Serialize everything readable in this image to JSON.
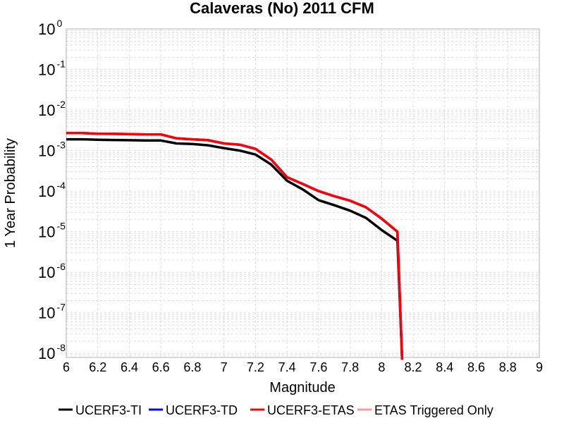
{
  "chart_data": {
    "type": "line",
    "title": "Calaveras (No) 2011 CFM",
    "xlabel": "Magnitude",
    "ylabel": "1 Year Probability",
    "xlim": [
      6,
      9
    ],
    "ylim_log10": [
      -8.1,
      0
    ],
    "yscale": "log",
    "grid": true,
    "legend_position": "bottom",
    "x_ticks": [
      "6",
      "6.2",
      "6.4",
      "6.6",
      "6.8",
      "7",
      "7.2",
      "7.4",
      "7.6",
      "7.8",
      "8",
      "8.2",
      "8.4",
      "8.6",
      "8.8",
      "9"
    ],
    "y_ticks": [
      {
        "base": "10",
        "exp": "0"
      },
      {
        "base": "10",
        "exp": "-1"
      },
      {
        "base": "10",
        "exp": "-2"
      },
      {
        "base": "10",
        "exp": "-3"
      },
      {
        "base": "10",
        "exp": "-4"
      },
      {
        "base": "10",
        "exp": "-5"
      },
      {
        "base": "10",
        "exp": "-6"
      },
      {
        "base": "10",
        "exp": "-7"
      },
      {
        "base": "10",
        "exp": "-8"
      }
    ],
    "series": [
      {
        "name": "UCERF3-TI",
        "color": "#000000",
        "x": [
          6.0,
          6.1,
          6.2,
          6.3,
          6.4,
          6.5,
          6.6,
          6.7,
          6.8,
          6.9,
          7.0,
          7.1,
          7.2,
          7.3,
          7.4,
          7.5,
          7.6,
          7.7,
          7.8,
          7.9,
          8.0,
          8.1,
          8.13
        ],
        "y": [
          0.0019,
          0.0019,
          0.00185,
          0.00182,
          0.0018,
          0.00178,
          0.00177,
          0.0015,
          0.00145,
          0.00135,
          0.00115,
          0.001,
          0.0008,
          0.00045,
          0.00018,
          0.00011,
          6e-05,
          4.5e-05,
          3.3e-05,
          2.2e-05,
          1.1e-05,
          6e-06,
          7e-09
        ]
      },
      {
        "name": "UCERF3-TD",
        "color": "#0000ff",
        "x": [
          6.0,
          6.1,
          6.2,
          6.3,
          6.4,
          6.5,
          6.6,
          6.7,
          6.8,
          6.9,
          7.0,
          7.1,
          7.2,
          7.3,
          7.4,
          7.5,
          7.6,
          7.7,
          7.8,
          7.9,
          8.0,
          8.1,
          8.13
        ],
        "y": [
          0.0027,
          0.0027,
          0.0026,
          0.00258,
          0.00255,
          0.0025,
          0.0025,
          0.002,
          0.0019,
          0.0018,
          0.0015,
          0.0014,
          0.0011,
          0.0006,
          0.00022,
          0.00015,
          0.0001,
          7.5e-05,
          5.8e-05,
          4e-05,
          2.1e-05,
          1e-05,
          7e-09
        ]
      },
      {
        "name": "UCERF3-ETAS",
        "color": "#ff0000",
        "x": [
          6.0,
          6.1,
          6.2,
          6.3,
          6.4,
          6.5,
          6.6,
          6.7,
          6.8,
          6.9,
          7.0,
          7.1,
          7.2,
          7.3,
          7.4,
          7.5,
          7.6,
          7.7,
          7.8,
          7.9,
          8.0,
          8.1,
          8.13
        ],
        "y": [
          0.0027,
          0.0027,
          0.0026,
          0.00258,
          0.00255,
          0.0025,
          0.0025,
          0.002,
          0.0019,
          0.0018,
          0.0015,
          0.0014,
          0.0011,
          0.0006,
          0.00022,
          0.00015,
          0.0001,
          7.5e-05,
          5.8e-05,
          4e-05,
          2.1e-05,
          1e-05,
          7e-09
        ]
      },
      {
        "name": "ETAS Triggered Only",
        "color": "#ff9999",
        "x": [],
        "y": []
      }
    ]
  }
}
